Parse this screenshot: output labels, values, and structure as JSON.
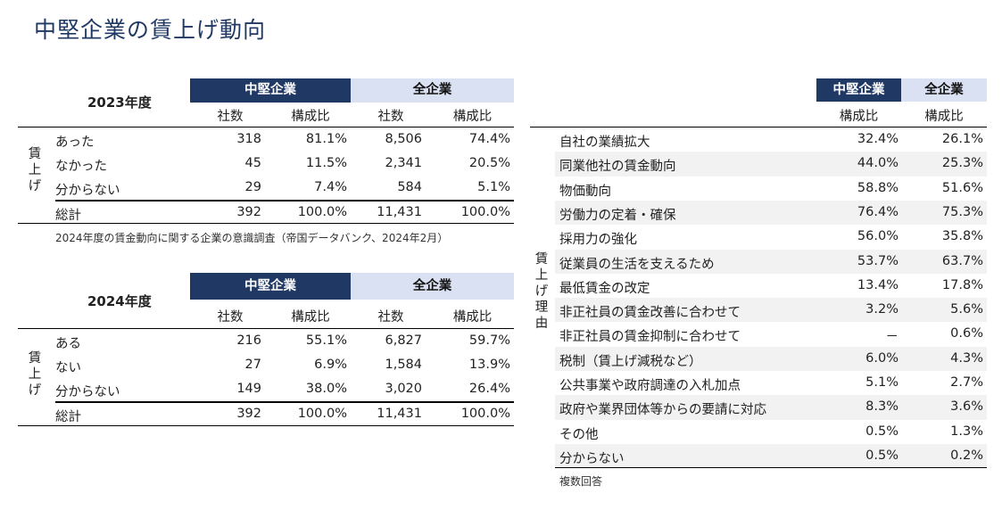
{
  "title": "中堅企業の賃上げ動向",
  "table2023": {
    "year": "2023年度",
    "group_mid": "中堅企業",
    "group_all": "全企業",
    "col_count": "社数",
    "col_ratio": "構成比",
    "side_label": [
      "賃",
      "上",
      "げ"
    ],
    "rows": [
      {
        "label": "あった",
        "mid_count": "318",
        "mid_ratio": "81.1%",
        "all_count": "8,506",
        "all_ratio": "74.4%"
      },
      {
        "label": "なかった",
        "mid_count": "45",
        "mid_ratio": "11.5%",
        "all_count": "2,341",
        "all_ratio": "20.5%"
      },
      {
        "label": "分からない",
        "mid_count": "29",
        "mid_ratio": "7.4%",
        "all_count": "584",
        "all_ratio": "5.1%"
      }
    ],
    "total": {
      "label": "総計",
      "mid_count": "392",
      "mid_ratio": "100.0%",
      "all_count": "11,431",
      "all_ratio": "100.0%"
    }
  },
  "source_note": "2024年度の賃金動向に関する企業の意識調査（帝国データバンク、2024年2月）",
  "table2024": {
    "year": "2024年度",
    "group_mid": "中堅企業",
    "group_all": "全企業",
    "col_count": "社数",
    "col_ratio": "構成比",
    "side_label": [
      "賃",
      "上",
      "げ"
    ],
    "rows": [
      {
        "label": "ある",
        "mid_count": "216",
        "mid_ratio": "55.1%",
        "all_count": "6,827",
        "all_ratio": "59.7%"
      },
      {
        "label": "ない",
        "mid_count": "27",
        "mid_ratio": "6.9%",
        "all_count": "1,584",
        "all_ratio": "13.9%"
      },
      {
        "label": "分からない",
        "mid_count": "149",
        "mid_ratio": "38.0%",
        "all_count": "3,020",
        "all_ratio": "26.4%"
      }
    ],
    "total": {
      "label": "総計",
      "mid_count": "392",
      "mid_ratio": "100.0%",
      "all_count": "11,431",
      "all_ratio": "100.0%"
    }
  },
  "reasons": {
    "group_mid": "中堅企業",
    "group_all": "全企業",
    "col_ratio": "構成比",
    "side_label": [
      "賃",
      "上",
      "げ",
      "理",
      "由"
    ],
    "rows": [
      {
        "label": "自社の業績拡大",
        "mid": "32.4%",
        "all": "26.1%"
      },
      {
        "label": "同業他社の賃金動向",
        "mid": "44.0%",
        "all": "25.3%"
      },
      {
        "label": "物価動向",
        "mid": "58.8%",
        "all": "51.6%"
      },
      {
        "label": "労働力の定着・確保",
        "mid": "76.4%",
        "all": "75.3%"
      },
      {
        "label": "採用力の強化",
        "mid": "56.0%",
        "all": "35.8%"
      },
      {
        "label": "従業員の生活を支えるため",
        "mid": "53.7%",
        "all": "63.7%"
      },
      {
        "label": "最低賃金の改定",
        "mid": "13.4%",
        "all": "17.8%"
      },
      {
        "label": "非正社員の賃金改善に合わせて",
        "mid": "3.2%",
        "all": "5.6%"
      },
      {
        "label": "非正社員の賃金抑制に合わせて",
        "mid": "－",
        "all": "0.6%"
      },
      {
        "label": "税制（賃上げ減税など）",
        "mid": "6.0%",
        "all": "4.3%"
      },
      {
        "label": "公共事業や政府調達の入札加点",
        "mid": "5.1%",
        "all": "2.7%"
      },
      {
        "label": "政府や業界団体等からの要請に対応",
        "mid": "8.3%",
        "all": "3.6%"
      },
      {
        "label": "その他",
        "mid": "0.5%",
        "all": "1.3%"
      },
      {
        "label": "分からない",
        "mid": "0.5%",
        "all": "0.2%"
      }
    ],
    "note": "複数回答"
  }
}
